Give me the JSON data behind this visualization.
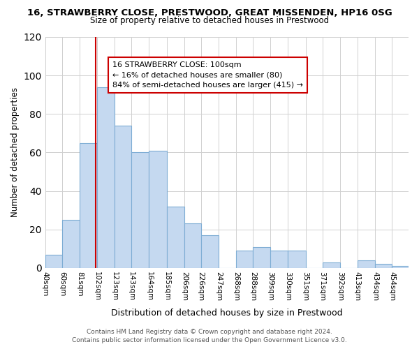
{
  "title": "16, STRAWBERRY CLOSE, PRESTWOOD, GREAT MISSENDEN, HP16 0SG",
  "subtitle": "Size of property relative to detached houses in Prestwood",
  "xlabel": "Distribution of detached houses by size in Prestwood",
  "ylabel": "Number of detached properties",
  "footer_line1": "Contains HM Land Registry data © Crown copyright and database right 2024.",
  "footer_line2": "Contains public sector information licensed under the Open Government Licence v3.0.",
  "bin_labels": [
    "40sqm",
    "60sqm",
    "81sqm",
    "102sqm",
    "123sqm",
    "143sqm",
    "164sqm",
    "185sqm",
    "206sqm",
    "226sqm",
    "247sqm",
    "268sqm",
    "288sqm",
    "309sqm",
    "330sqm",
    "351sqm",
    "371sqm",
    "392sqm",
    "413sqm",
    "434sqm",
    "454sqm"
  ],
  "bar_values": [
    7,
    25,
    65,
    94,
    74,
    60,
    61,
    32,
    23,
    17,
    0,
    9,
    11,
    9,
    9,
    0,
    3,
    0,
    4,
    2,
    1
  ],
  "bar_color": "#c5d9f0",
  "bar_edge_color": "#7eadd4",
  "ylim": [
    0,
    120
  ],
  "yticks": [
    0,
    20,
    40,
    60,
    80,
    100,
    120
  ],
  "property_line_x": 100,
  "property_line_color": "#cc0000",
  "annotation_title": "16 STRAWBERRY CLOSE: 100sqm",
  "annotation_line1": "← 16% of detached houses are smaller (80)",
  "annotation_line2": "84% of semi-detached houses are larger (415) →",
  "annotation_box_color": "#ffffff",
  "annotation_box_edge": "#cc0000",
  "bin_edges": [
    40,
    60,
    81,
    102,
    123,
    143,
    164,
    185,
    206,
    226,
    247,
    268,
    288,
    309,
    330,
    351,
    371,
    392,
    413,
    434,
    454,
    474
  ]
}
